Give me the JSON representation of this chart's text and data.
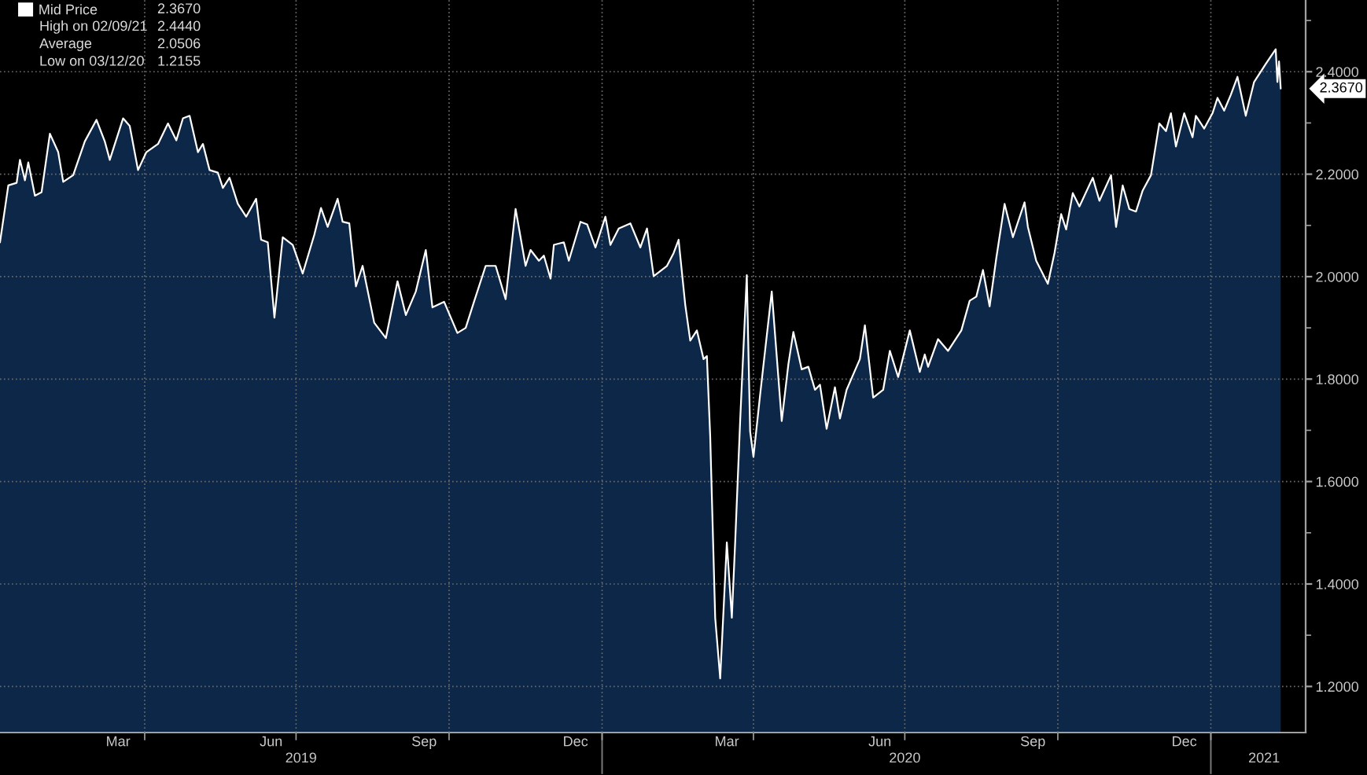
{
  "chart_data": {
    "type": "area",
    "x": [
      "2019-01-04",
      "2019-01-09",
      "2019-01-14",
      "2019-01-16",
      "2019-01-19",
      "2019-01-21",
      "2019-01-25",
      "2019-01-29",
      "2019-02-03",
      "2019-02-08",
      "2019-02-11",
      "2019-02-17",
      "2019-02-24",
      "2019-03-03",
      "2019-03-08",
      "2019-03-11",
      "2019-03-19",
      "2019-03-23",
      "2019-03-28",
      "2019-04-02",
      "2019-04-09",
      "2019-04-15",
      "2019-04-20",
      "2019-04-24",
      "2019-04-28",
      "2019-05-03",
      "2019-05-06",
      "2019-05-10",
      "2019-05-15",
      "2019-05-18",
      "2019-05-22",
      "2019-05-27",
      "2019-06-01",
      "2019-06-07",
      "2019-06-10",
      "2019-06-14",
      "2019-06-18",
      "2019-06-23",
      "2019-06-29",
      "2019-07-05",
      "2019-07-12",
      "2019-07-16",
      "2019-07-20",
      "2019-07-26",
      "2019-07-29",
      "2019-08-02",
      "2019-08-06",
      "2019-08-10",
      "2019-08-17",
      "2019-08-24",
      "2019-08-31",
      "2019-09-05",
      "2019-09-11",
      "2019-09-17",
      "2019-09-21",
      "2019-09-28",
      "2019-10-06",
      "2019-10-11",
      "2019-10-16",
      "2019-10-23",
      "2019-10-29",
      "2019-11-04",
      "2019-11-10",
      "2019-11-16",
      "2019-11-19",
      "2019-11-24",
      "2019-11-27",
      "2019-12-01",
      "2019-12-03",
      "2019-12-09",
      "2019-12-12",
      "2019-12-19",
      "2019-12-23",
      "2019-12-28",
      "2020-01-03",
      "2020-01-06",
      "2020-01-11",
      "2020-01-18",
      "2020-01-24",
      "2020-01-28",
      "2020-02-01",
      "2020-02-09",
      "2020-02-13",
      "2020-02-16",
      "2020-02-20",
      "2020-02-23",
      "2020-02-27",
      "2020-03-02",
      "2020-03-04",
      "2020-03-06",
      "2020-03-09",
      "2020-03-12",
      "2020-03-16",
      "2020-03-19",
      "2020-03-21",
      "2020-03-24",
      "2020-03-28",
      "2020-03-30",
      "2020-04-01",
      "2020-04-05",
      "2020-04-12",
      "2020-04-18",
      "2020-04-22",
      "2020-04-25",
      "2020-04-30",
      "2020-05-04",
      "2020-05-08",
      "2020-05-11",
      "2020-05-15",
      "2020-05-20",
      "2020-05-23",
      "2020-05-27",
      "2020-05-31",
      "2020-06-04",
      "2020-06-07",
      "2020-06-12",
      "2020-06-18",
      "2020-06-22",
      "2020-06-27",
      "2020-07-04",
      "2020-07-10",
      "2020-07-13",
      "2020-07-15",
      "2020-07-21",
      "2020-07-27",
      "2020-08-04",
      "2020-08-09",
      "2020-08-13",
      "2020-08-17",
      "2020-08-21",
      "2020-08-25",
      "2020-08-30",
      "2020-09-04",
      "2020-09-11",
      "2020-09-13",
      "2020-09-18",
      "2020-09-25",
      "2020-09-29",
      "2020-10-03",
      "2020-10-06",
      "2020-10-10",
      "2020-10-14",
      "2020-10-22",
      "2020-10-26",
      "2020-11-02",
      "2020-11-05",
      "2020-11-09",
      "2020-11-13",
      "2020-11-17",
      "2020-11-21",
      "2020-11-26",
      "2020-12-01",
      "2020-12-05",
      "2020-12-08",
      "2020-12-11",
      "2020-12-16",
      "2020-12-21",
      "2020-12-23",
      "2020-12-28",
      "2021-01-02",
      "2021-01-05",
      "2021-01-09",
      "2021-01-13",
      "2021-01-17",
      "2021-01-22",
      "2021-01-27",
      "2021-02-03",
      "2021-02-09",
      "2021-02-10",
      "2021-02-11",
      "2021-02-12"
    ],
    "series": [
      {
        "name": "Mid Price",
        "color": "#ffffff",
        "values": [
          2.067,
          2.178,
          2.183,
          2.228,
          2.188,
          2.223,
          2.158,
          2.165,
          2.279,
          2.243,
          2.185,
          2.198,
          2.264,
          2.306,
          2.264,
          2.228,
          2.309,
          2.294,
          2.208,
          2.243,
          2.259,
          2.299,
          2.266,
          2.309,
          2.314,
          2.243,
          2.259,
          2.208,
          2.203,
          2.173,
          2.193,
          2.142,
          2.117,
          2.152,
          2.072,
          2.067,
          1.92,
          2.077,
          2.062,
          2.006,
          2.082,
          2.134,
          2.097,
          2.152,
          2.107,
          2.104,
          1.981,
          2.021,
          1.91,
          1.88,
          1.991,
          1.925,
          1.971,
          2.052,
          1.94,
          1.951,
          1.89,
          1.9,
          1.951,
          2.021,
          2.021,
          1.956,
          2.132,
          2.021,
          2.052,
          2.031,
          2.041,
          1.996,
          2.062,
          2.067,
          2.031,
          2.107,
          2.102,
          2.057,
          2.117,
          2.062,
          2.094,
          2.104,
          2.057,
          2.094,
          2.001,
          2.021,
          2.046,
          2.072,
          1.945,
          1.875,
          1.895,
          1.839,
          1.845,
          1.688,
          1.334,
          1.2155,
          1.481,
          1.334,
          1.481,
          1.718,
          2.003,
          1.698,
          1.648,
          1.769,
          1.971,
          1.718,
          1.829,
          1.892,
          1.819,
          1.824,
          1.779,
          1.789,
          1.703,
          1.784,
          1.723,
          1.779,
          1.809,
          1.839,
          1.905,
          1.764,
          1.779,
          1.855,
          1.804,
          1.895,
          1.814,
          1.848,
          1.824,
          1.878,
          1.855,
          1.895,
          1.953,
          1.961,
          2.013,
          1.942,
          2.036,
          2.142,
          2.077,
          2.145,
          2.097,
          2.031,
          1.986,
          2.046,
          2.122,
          2.092,
          2.163,
          2.137,
          2.193,
          2.148,
          2.198,
          2.097,
          2.178,
          2.132,
          2.127,
          2.168,
          2.198,
          2.299,
          2.284,
          2.319,
          2.254,
          2.319,
          2.272,
          2.314,
          2.289,
          2.319,
          2.349,
          2.324,
          2.355,
          2.39,
          2.314,
          2.38,
          2.415,
          2.444,
          2.38,
          2.42,
          2.367
        ]
      }
    ],
    "xlim": [
      "2019-01-04",
      "2021-02-27"
    ],
    "xticks": [
      {
        "value": "2019-03-16",
        "label": "Mar"
      },
      {
        "value": "2019-04-01",
        "label": null
      },
      {
        "value": "2019-06-16",
        "label": "Jun"
      },
      {
        "value": "2019-07-01",
        "label": null
      },
      {
        "value": "2019-09-16",
        "label": "Sep"
      },
      {
        "value": "2019-10-01",
        "label": null
      },
      {
        "value": "2019-12-16",
        "label": "Dec"
      },
      {
        "value": "2020-01-01",
        "label": null
      },
      {
        "value": "2020-03-16",
        "label": "Mar"
      },
      {
        "value": "2020-04-01",
        "label": null
      },
      {
        "value": "2020-06-16",
        "label": "Jun"
      },
      {
        "value": "2020-07-01",
        "label": null
      },
      {
        "value": "2020-09-16",
        "label": "Sep"
      },
      {
        "value": "2020-10-01",
        "label": null
      },
      {
        "value": "2020-12-16",
        "label": "Dec"
      },
      {
        "value": "2021-01-01",
        "label": null
      }
    ],
    "x2lim": [
      "2019-01-04",
      "2021-02-27"
    ],
    "x2ticks": [
      {
        "value": "2019-07-04",
        "label": "2019"
      },
      {
        "value": "2020-01-01",
        "label": null
      },
      {
        "value": "2020-07-01",
        "label": "2020"
      },
      {
        "value": "2021-01-01",
        "label": null
      },
      {
        "value": "2021-02-02",
        "label": "2021"
      }
    ],
    "ylim": [
      1.11,
      2.54
    ],
    "yticks": [
      {
        "value": 1.2,
        "label": "1.2000"
      },
      {
        "value": 1.3,
        "label": null
      },
      {
        "value": 1.4,
        "label": "1.4000"
      },
      {
        "value": 1.5,
        "label": null
      },
      {
        "value": 1.6,
        "label": "1.6000"
      },
      {
        "value": 1.7,
        "label": null
      },
      {
        "value": 1.8,
        "label": "1.8000"
      },
      {
        "value": 1.9,
        "label": null
      },
      {
        "value": 2.0,
        "label": "2.0000"
      },
      {
        "value": 2.1,
        "label": null
      },
      {
        "value": 2.2,
        "label": "2.2000"
      },
      {
        "value": 2.3,
        "label": null
      },
      {
        "value": 2.4,
        "label": "2.4000"
      },
      {
        "value": 2.5,
        "label": null
      }
    ],
    "annotations": [
      "2.3670",
      "High on 02/09/21",
      "2.4440",
      "Average",
      "2.0506",
      "Low on 03/12/20",
      "1.2155",
      "2.3670"
    ],
    "grid": true,
    "legend": "top left"
  }
}
